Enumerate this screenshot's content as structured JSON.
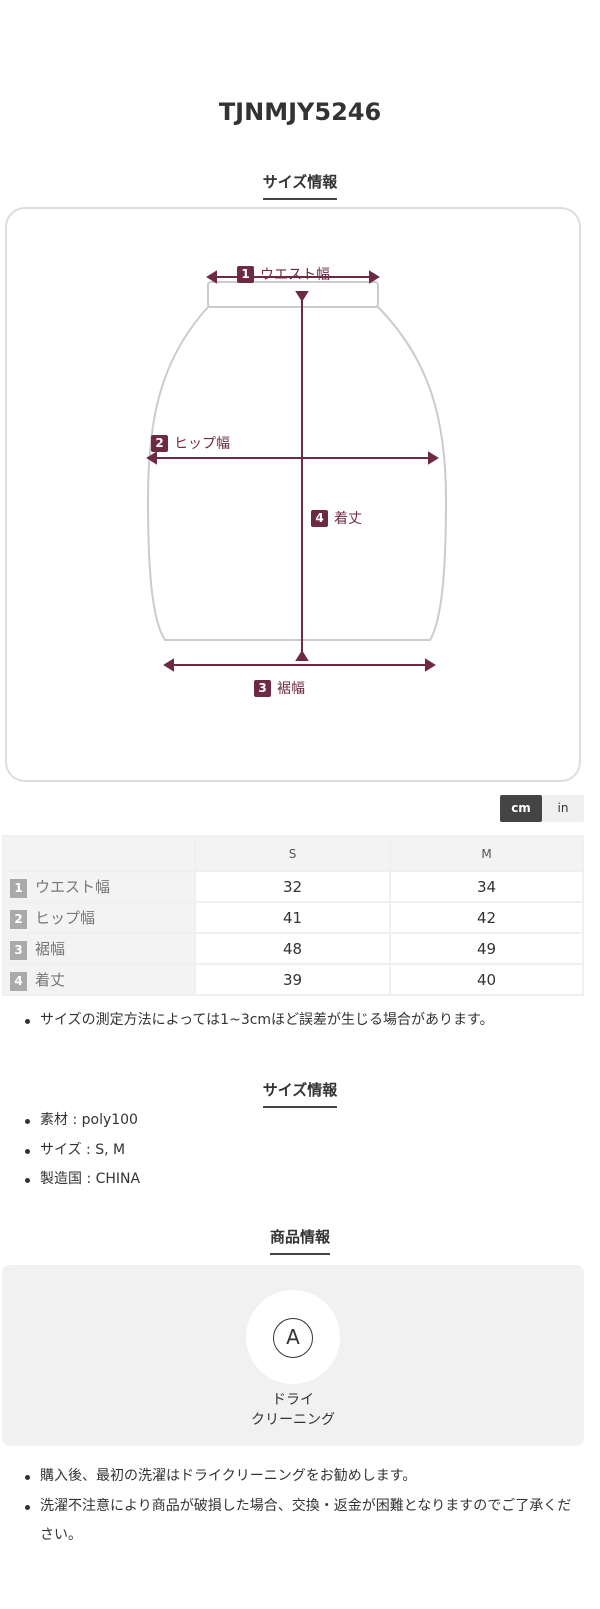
{
  "product_code": "TJNMJY5246",
  "size_section": {
    "title": "サイズ情報",
    "diagram": {
      "accent": "#6e2a45",
      "labels": [
        {
          "n": "1",
          "text": "ウエスト幅"
        },
        {
          "n": "2",
          "text": "ヒップ幅"
        },
        {
          "n": "3",
          "text": "裾幅"
        },
        {
          "n": "4",
          "text": "着丈"
        }
      ]
    },
    "unit_toggle": {
      "cm": "cm",
      "in": "in",
      "selected": "cm"
    },
    "table": {
      "headers": [
        "S",
        "M"
      ],
      "rows": [
        {
          "n": "1",
          "label": "ウエスト幅",
          "values": [
            "32",
            "34"
          ]
        },
        {
          "n": "2",
          "label": "ヒップ幅",
          "values": [
            "41",
            "42"
          ]
        },
        {
          "n": "3",
          "label": "裾幅",
          "values": [
            "48",
            "49"
          ]
        },
        {
          "n": "4",
          "label": "着丈",
          "values": [
            "39",
            "40"
          ]
        }
      ]
    },
    "note": "サイズの測定方法によっては1~3cmほど誤差が生じる場合があります。"
  },
  "spec_section": {
    "title": "サイズ情報",
    "items": [
      "素材 : poly100",
      "サイズ : S, M",
      "製造国 : CHINA"
    ]
  },
  "product_section": {
    "title": "商品情報",
    "care_icon": "A",
    "care_line1": "ドライ",
    "care_line2": "クリーニング",
    "notes": [
      "購入後、最初の洗濯はドライクリーニングをお勧めします。",
      "洗濯不注意により商品が破損した場合、交換・返金が困難となりますのでご了承ください。"
    ]
  }
}
